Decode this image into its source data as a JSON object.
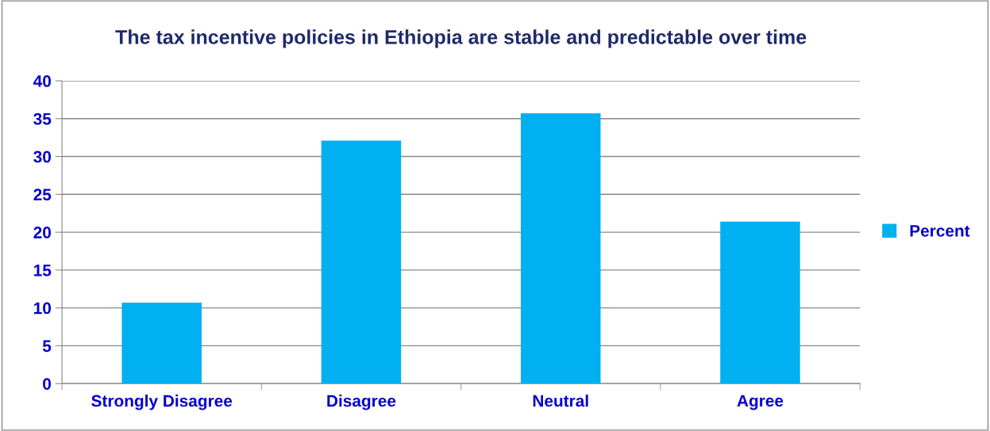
{
  "chart_data": {
    "type": "bar",
    "title": "The tax incentive policies in Ethiopia are stable and predictable over time",
    "categories": [
      "Strongly Disagree",
      "Disagree",
      "Neutral",
      "Agree"
    ],
    "series": [
      {
        "name": "Percent",
        "color": "#00b0f0",
        "values": [
          10.7,
          32.1,
          35.7,
          21.4
        ]
      }
    ],
    "ylim": [
      0,
      40
    ],
    "yticks": [
      0,
      5,
      10,
      15,
      20,
      25,
      30,
      35,
      40
    ],
    "grid": "y",
    "legend": "right"
  }
}
